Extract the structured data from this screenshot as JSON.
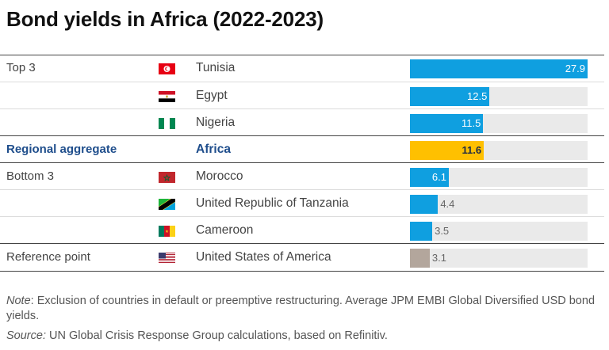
{
  "title": "Bond yields in Africa (2022-2023)",
  "colors": {
    "top": "#0f9fe0",
    "aggregate": "#ffc000",
    "bottom": "#0f9fe0",
    "reference": "#b3a69c",
    "track": "#eaeaea",
    "aggregate_text": "#1f4e8c"
  },
  "chart_data": {
    "type": "bar",
    "orientation": "horizontal",
    "xlim": [
      0,
      27.9
    ],
    "rows": [
      {
        "group": "Top 3",
        "country": "Tunisia",
        "flag": "tunisia-flag-icon",
        "value": 27.9,
        "kind": "top"
      },
      {
        "group": "",
        "country": "Egypt",
        "flag": "egypt-flag-icon",
        "value": 12.5,
        "kind": "top"
      },
      {
        "group": "",
        "country": "Nigeria",
        "flag": "nigeria-flag-icon",
        "value": 11.5,
        "kind": "top"
      },
      {
        "group": "Regional aggregate",
        "country": "Africa",
        "flag": "",
        "value": 11.6,
        "kind": "aggregate"
      },
      {
        "group": "Bottom 3",
        "country": "Morocco",
        "flag": "morocco-flag-icon",
        "value": 6.1,
        "kind": "bottom"
      },
      {
        "group": "",
        "country": "United Republic of Tanzania",
        "flag": "tanzania-flag-icon",
        "value": 4.4,
        "kind": "bottom"
      },
      {
        "group": "",
        "country": "Cameroon",
        "flag": "cameroon-flag-icon",
        "value": 3.5,
        "kind": "bottom"
      },
      {
        "group": "Reference point",
        "country": "United States of America",
        "flag": "usa-flag-icon",
        "value": 3.1,
        "kind": "reference"
      }
    ],
    "value_labels": [
      "27.9",
      "12.5",
      "11.5",
      "11.6",
      "6.1",
      "4.4",
      "3.5",
      "3.1"
    ]
  },
  "footnote": {
    "note_label": "Note",
    "note_text": ": Exclusion of countries in default or preemptive restructuring. Average JPM EMBI Global Diversified USD bond yields.",
    "source_label": "Source:",
    "source_text": " UN Global Crisis Response Group calculations, based on Refinitiv."
  }
}
